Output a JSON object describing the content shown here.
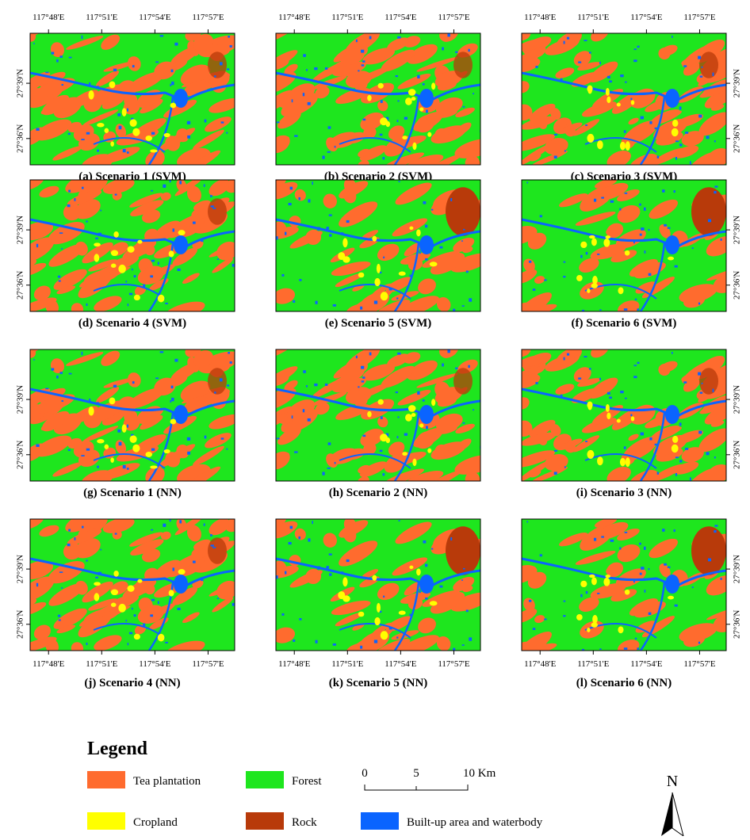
{
  "panels": [
    {
      "caption": "(a) Scenario 1 (SVM)"
    },
    {
      "caption": "(b) Scenario 2 (SVM)"
    },
    {
      "caption": "(c) Scenario 3 (SVM)"
    },
    {
      "caption": "(d) Scenario 4 (SVM)"
    },
    {
      "caption": "(e) Scenario 5 (SVM)"
    },
    {
      "caption": "(f) Scenario 6 (SVM)"
    },
    {
      "caption": "(g) Scenario 1 (NN)"
    },
    {
      "caption": "(h) Scenario 2 (NN)"
    },
    {
      "caption": "(i) Scenario 3 (NN)"
    },
    {
      "caption": "(j) Scenario 4 (NN)"
    },
    {
      "caption": "(k) Scenario 5 (NN)"
    },
    {
      "caption": "(l) Scenario 6 (NN)"
    }
  ],
  "lon_labels": [
    "117°48'E",
    "117°51'E",
    "117°54'E",
    "117°57'E"
  ],
  "lat_labels": [
    "27°39'N",
    "27°36'N"
  ],
  "legend": {
    "title": "Legend",
    "items": [
      {
        "label": "Tea plantation",
        "color": "#ff6b2e"
      },
      {
        "label": "Forest",
        "color": "#1ee61e"
      },
      {
        "label": "Cropland",
        "color": "#ffff00"
      },
      {
        "label": "Rock",
        "color": "#b83a0a"
      },
      {
        "label": "Built-up area and waterbody",
        "color": "#0a64ff"
      }
    ]
  },
  "scale_bar": {
    "labels": [
      "0",
      "5",
      "10 Km"
    ]
  },
  "north_arrow": "N"
}
